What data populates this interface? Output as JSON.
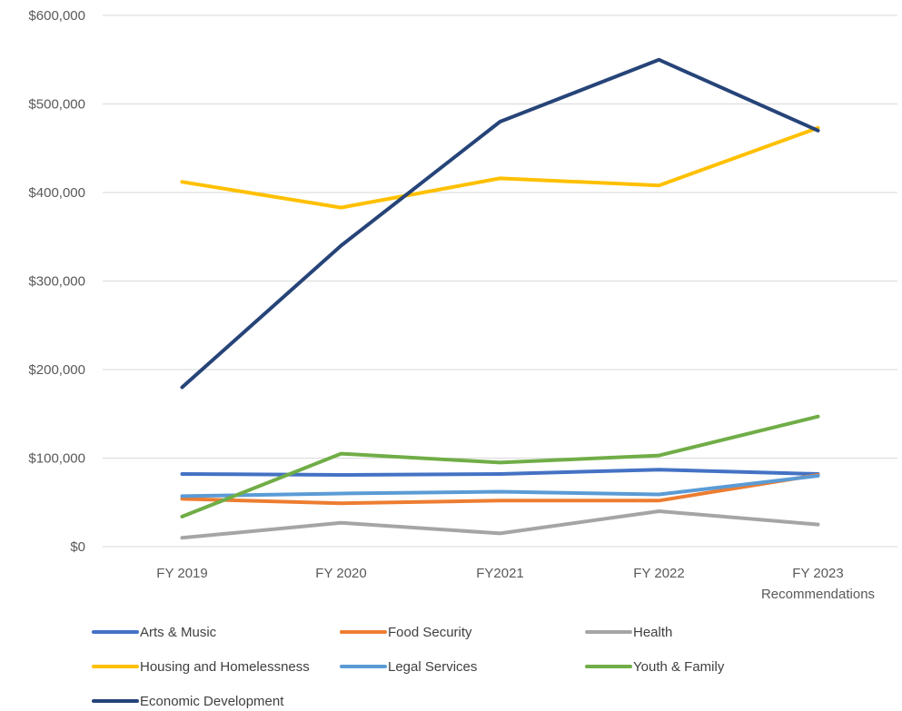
{
  "chart_data": {
    "type": "line",
    "title": "",
    "xlabel": "",
    "ylabel": "",
    "categories": [
      [
        "FY 2019"
      ],
      [
        "FY 2020"
      ],
      [
        "FY2021"
      ],
      [
        "FY 2022"
      ],
      [
        "FY 2023",
        "Recommendations"
      ]
    ],
    "y_ticks": [
      "$0",
      "$100,000",
      "$200,000",
      "$300,000",
      "$400,000",
      "$500,000",
      "$600,000"
    ],
    "ylim": [
      0,
      600000
    ],
    "grid": true,
    "legend_position": "bottom",
    "series": [
      {
        "name": "Arts & Music",
        "color": "#4472C4",
        "values": [
          82000,
          81000,
          82000,
          87000,
          82000
        ]
      },
      {
        "name": "Food Security",
        "color": "#ED7D31",
        "values": [
          54000,
          49000,
          52000,
          52000,
          81000
        ]
      },
      {
        "name": "Health",
        "color": "#A5A5A5",
        "values": [
          10000,
          27000,
          15000,
          40000,
          25000
        ]
      },
      {
        "name": "Housing and Homelessness",
        "color": "#FFC000",
        "values": [
          412000,
          383000,
          416000,
          408000,
          473000
        ]
      },
      {
        "name": "Legal Services",
        "color": "#5B9BD5",
        "values": [
          57000,
          60000,
          62000,
          59000,
          80000
        ]
      },
      {
        "name": "Youth & Family",
        "color": "#70AD47",
        "values": [
          34000,
          105000,
          95000,
          103000,
          147000
        ]
      },
      {
        "name": "Economic Development",
        "color": "#264478",
        "values": [
          180000,
          340000,
          480000,
          550000,
          470000
        ]
      }
    ]
  }
}
